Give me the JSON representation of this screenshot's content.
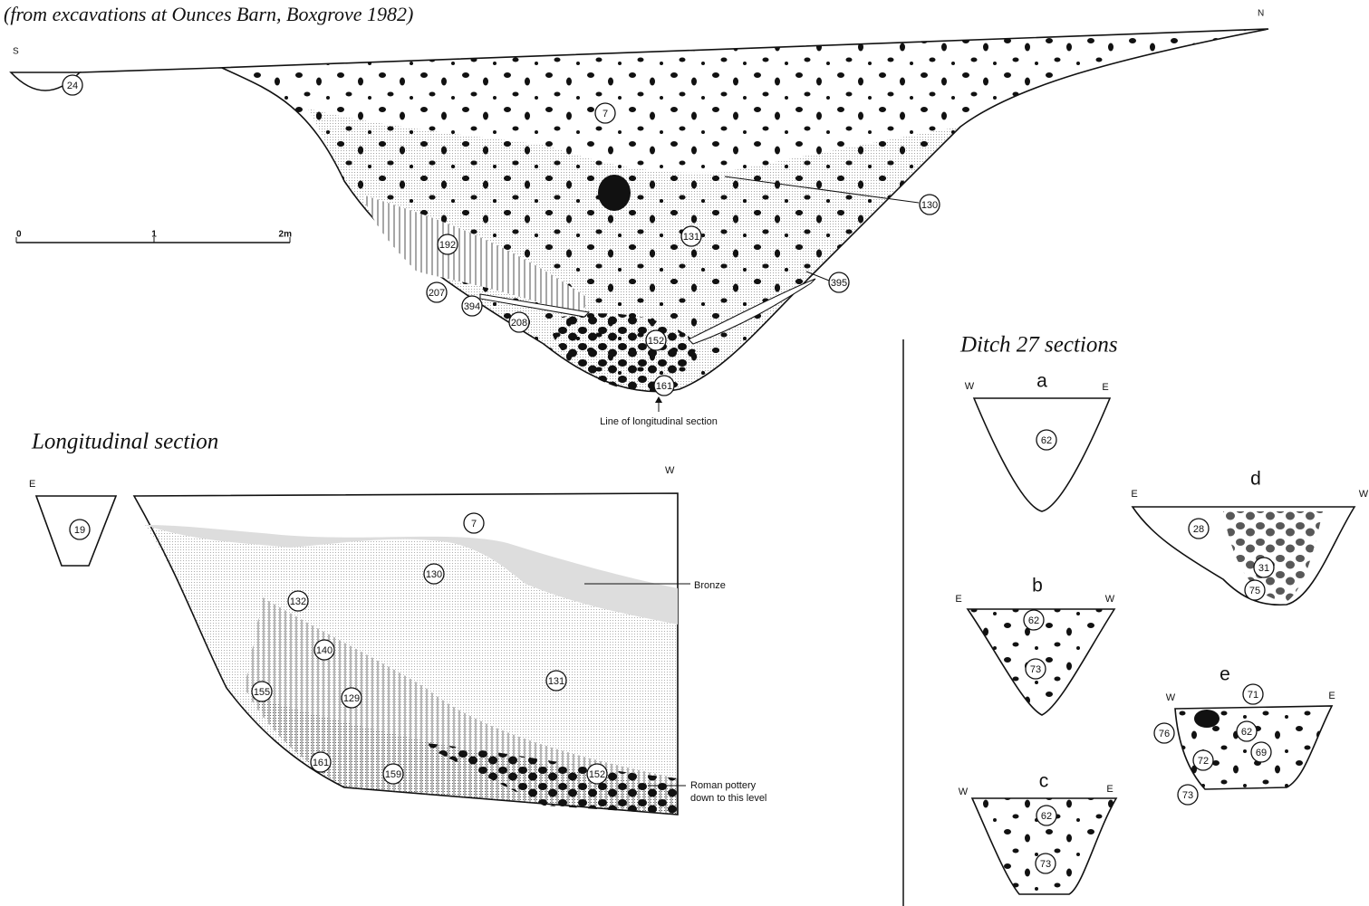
{
  "caption": "(from excavations at Ounces Barn, Boxgrove 1982)",
  "cross_section": {
    "end_labels": [
      "S",
      "N"
    ],
    "layers": [
      "24",
      "7",
      "130",
      "131",
      "192",
      "207",
      "394",
      "208",
      "152",
      "161",
      "395"
    ],
    "scale_labels": [
      "0",
      "1",
      "2m"
    ],
    "note": "Line of longitudinal section"
  },
  "longitudinal_section": {
    "title": "Longitudinal section",
    "end_labels": [
      "E",
      "W"
    ],
    "layers": [
      "19",
      "7",
      "130",
      "132",
      "140",
      "131",
      "155",
      "129",
      "161",
      "159",
      "152"
    ],
    "annotations": [
      "Bronze",
      "Roman pottery",
      "down to this level"
    ]
  },
  "ditch_27": {
    "title": "Ditch 27 sections",
    "sections": [
      {
        "name": "a",
        "end_labels": [
          "W",
          "E"
        ],
        "layers": [
          "62"
        ]
      },
      {
        "name": "b",
        "end_labels": [
          "E",
          "W"
        ],
        "layers": [
          "62",
          "73"
        ]
      },
      {
        "name": "c",
        "end_labels": [
          "W",
          "E"
        ],
        "layers": [
          "62",
          "73"
        ]
      },
      {
        "name": "d",
        "end_labels": [
          "E",
          "W"
        ],
        "layers": [
          "28",
          "31",
          "75"
        ]
      },
      {
        "name": "e",
        "end_labels": [
          "W",
          "E"
        ],
        "layers": [
          "71",
          "76",
          "62",
          "69",
          "72",
          "73"
        ]
      }
    ]
  }
}
